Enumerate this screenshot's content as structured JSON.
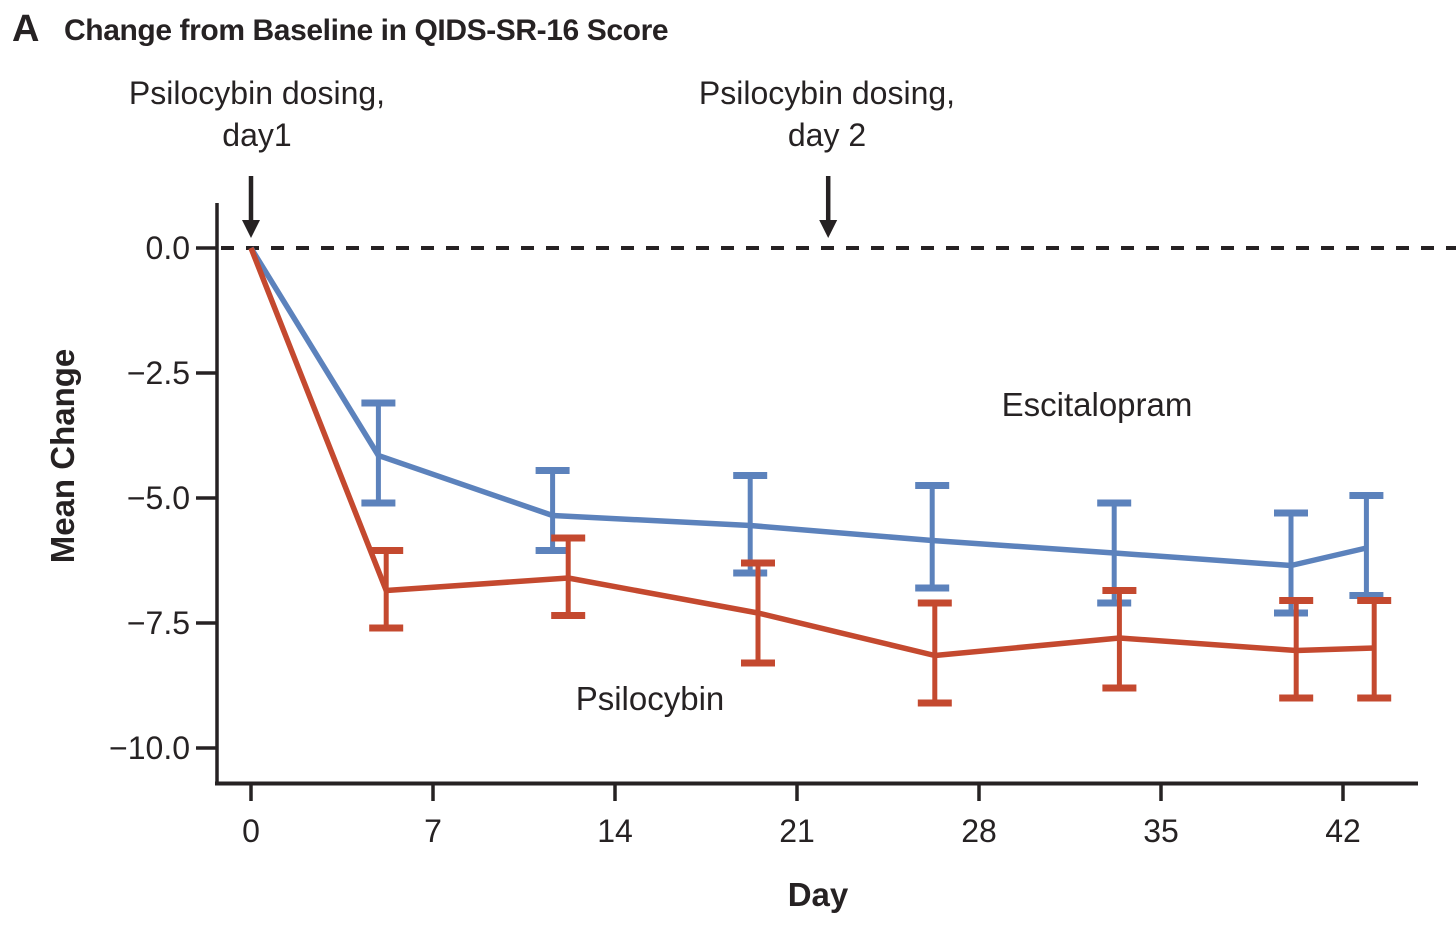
{
  "figure": {
    "panel_letter": "A",
    "title": "Change from Baseline in QIDS-SR-16 Score"
  },
  "annotations": [
    {
      "line1": "Psilocybin dosing,",
      "line2": "day1",
      "arrow_day": 0
    },
    {
      "line1": "Psilocybin dosing,",
      "line2": "day 2",
      "arrow_day": 22.2
    }
  ],
  "chart_data": {
    "type": "line",
    "title": "Change from Baseline in QIDS-SR-16 Score",
    "xlabel": "Day",
    "ylabel": "Mean Change",
    "x_ticks": [
      0,
      7,
      14,
      21,
      28,
      35,
      42
    ],
    "y_ticks": [
      {
        "value": 0,
        "label": "0.0"
      },
      {
        "value": -2.5,
        "label": "−2.5"
      },
      {
        "value": -5,
        "label": "−5.0"
      },
      {
        "value": -7.5,
        "label": "−7.5"
      },
      {
        "value": -10,
        "label": "−10.0"
      }
    ],
    "xlim": [
      0,
      46.3
    ],
    "ylim": [
      -10.7,
      0.45
    ],
    "grid": false,
    "zero_reference_line": 0,
    "legend_position": "inline-labels",
    "series": [
      {
        "name": "Escitalopram",
        "color": "#5c82bc",
        "points": [
          {
            "day": 0,
            "value": 0
          },
          {
            "day": 4.9,
            "value": -4.15,
            "hi": -3.1,
            "lo": -5.1
          },
          {
            "day": 11.6,
            "value": -5.35,
            "hi": -4.45,
            "lo": -6.05
          },
          {
            "day": 19.2,
            "value": -5.55,
            "hi": -4.55,
            "lo": -6.5
          },
          {
            "day": 26.2,
            "value": -5.85,
            "hi": -4.75,
            "lo": -6.8
          },
          {
            "day": 33.2,
            "value": -6.1,
            "hi": -5.1,
            "lo": -7.1
          },
          {
            "day": 40.0,
            "value": -6.35,
            "hi": -5.3,
            "lo": -7.3
          },
          {
            "day": 42.9,
            "value": -6.0,
            "hi": -4.95,
            "lo": -6.95
          }
        ]
      },
      {
        "name": "Psilocybin",
        "color": "#c4492f",
        "points": [
          {
            "day": 0,
            "value": 0
          },
          {
            "day": 5.2,
            "value": -6.85,
            "hi": -6.05,
            "lo": -7.6
          },
          {
            "day": 12.2,
            "value": -6.6,
            "hi": -5.8,
            "lo": -7.35
          },
          {
            "day": 19.5,
            "value": -7.3,
            "hi": -6.3,
            "lo": -8.3
          },
          {
            "day": 26.3,
            "value": -8.15,
            "hi": -7.1,
            "lo": -9.1
          },
          {
            "day": 33.4,
            "value": -7.8,
            "hi": -6.85,
            "lo": -8.8
          },
          {
            "day": 40.2,
            "value": -8.05,
            "hi": -7.05,
            "lo": -9.0
          },
          {
            "day": 43.2,
            "value": -8.0,
            "hi": -7.05,
            "lo": -9.0
          }
        ]
      }
    ],
    "colors": {
      "axis": "#262223",
      "tick_text": "#262223",
      "dashed_line": "#262223",
      "arrow": "#262223"
    }
  }
}
